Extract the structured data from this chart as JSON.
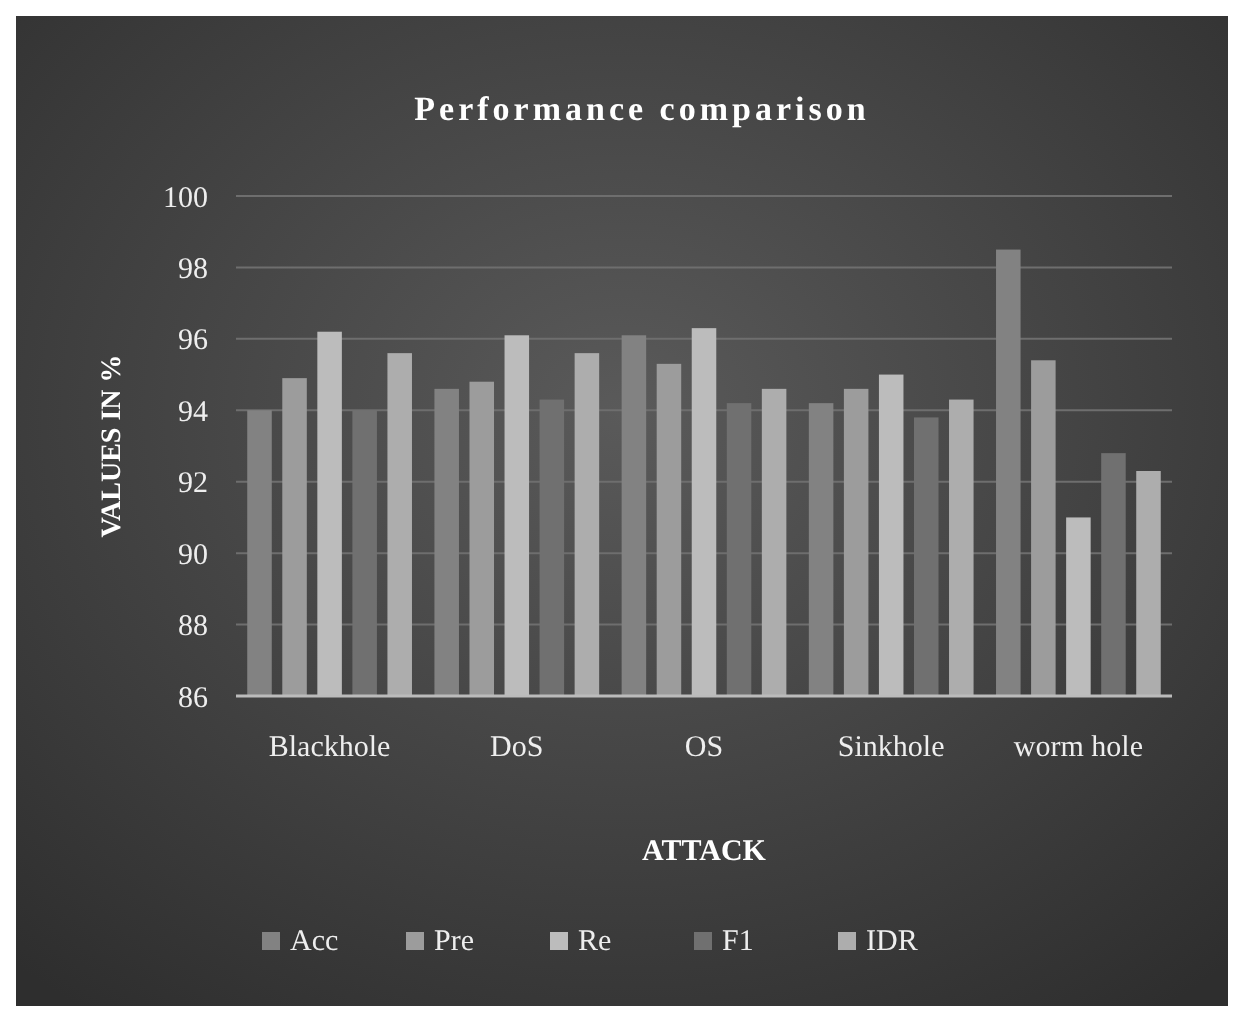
{
  "chart_data": {
    "type": "bar",
    "title": "Performance comparison",
    "xlabel": "ATTACK",
    "ylabel": "VALUES IN %",
    "categories": [
      "Blackhole",
      "DoS",
      "OS",
      "Sinkhole",
      "worm hole"
    ],
    "series": [
      {
        "name": "Acc",
        "color": "#828282",
        "values": [
          94.0,
          94.6,
          96.1,
          94.2,
          98.5
        ]
      },
      {
        "name": "Pre",
        "color": "#9c9c9c",
        "values": [
          94.9,
          94.8,
          95.3,
          94.6,
          95.4
        ]
      },
      {
        "name": "Re",
        "color": "#bcbcbc",
        "values": [
          96.2,
          96.1,
          96.3,
          95.0,
          91.0
        ]
      },
      {
        "name": "F1",
        "color": "#707070",
        "values": [
          94.0,
          94.3,
          94.2,
          93.8,
          92.8
        ]
      },
      {
        "name": "IDR",
        "color": "#adadad",
        "values": [
          95.6,
          95.6,
          94.6,
          94.3,
          92.3
        ]
      }
    ],
    "ylim": [
      86,
      100
    ],
    "yticks": [
      86,
      88,
      90,
      92,
      94,
      96,
      98,
      100
    ],
    "grid": "y",
    "legend": "bottom"
  }
}
